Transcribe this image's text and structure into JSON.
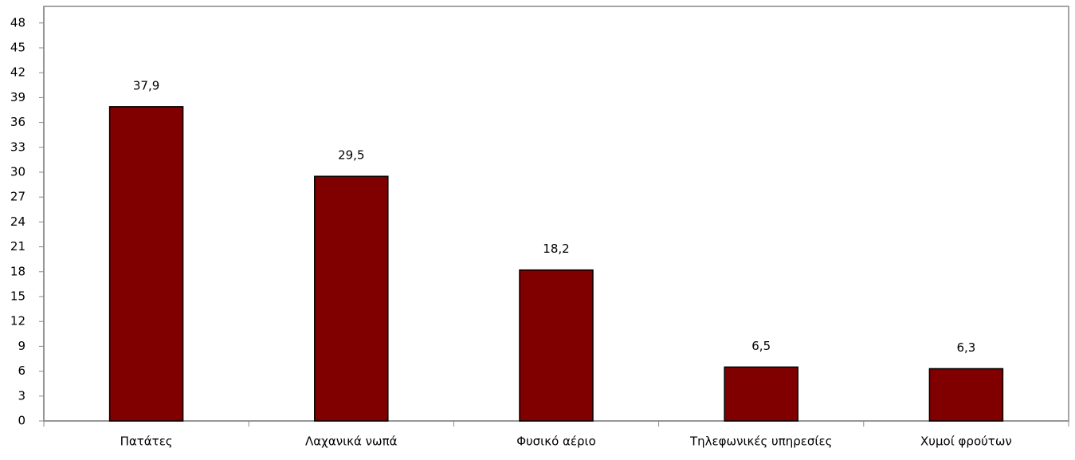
{
  "chart_data": {
    "type": "bar",
    "categories": [
      "Πατάτες",
      "Λαχανικά νωπά",
      "Φυσικό αέριο",
      "Τηλεφωνικές υπηρεσίες",
      "Χυμοί φρούτων"
    ],
    "values": [
      37.9,
      29.5,
      18.2,
      6.5,
      6.3
    ],
    "value_labels": [
      "37,9",
      "29,5",
      "18,2",
      "6,5",
      "6,3"
    ],
    "color": "#800000",
    "ylim": [
      0,
      50
    ],
    "yticks": [
      0,
      3,
      6,
      9,
      12,
      15,
      18,
      21,
      24,
      27,
      30,
      33,
      36,
      39,
      42,
      45,
      48
    ]
  }
}
